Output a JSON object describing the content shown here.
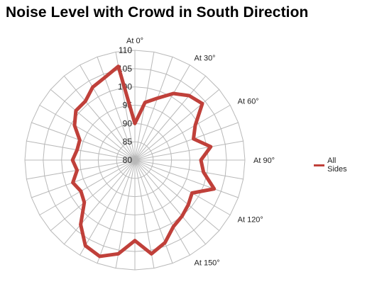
{
  "title": "Noise Level with Crowd in South Direction",
  "chart_data": {
    "type": "radar",
    "title": "Noise Level with Crowd in South Direction",
    "rlim": [
      80,
      110
    ],
    "r_ticks": [
      "80",
      "85",
      "90",
      "95",
      "100",
      "105",
      "110"
    ],
    "direction_labels": [
      {
        "label": "At 0°",
        "angle": 0
      },
      {
        "label": "At 30°",
        "angle": 30
      },
      {
        "label": "At 60°",
        "angle": 60
      },
      {
        "label": "At 90°",
        "angle": 90
      },
      {
        "label": "At 120°",
        "angle": 120
      },
      {
        "label": "At 150°",
        "angle": 150
      }
    ],
    "spokes": 36,
    "grid": true,
    "legend_position": "right",
    "series": [
      {
        "name": "All Sides",
        "color": "#c0403a",
        "values": [
          90,
          96,
          98,
          101,
          103,
          104,
          99,
          97,
          101,
          98,
          99,
          103,
          98,
          99,
          100,
          101,
          104,
          106,
          102,
          106,
          108,
          107,
          103,
          98,
          97,
          98,
          96,
          97,
          96,
          96,
          99,
          101,
          101,
          103,
          104,
          106
        ]
      }
    ],
    "legend": [
      {
        "label": "All Sides",
        "color": "#c0403a"
      }
    ]
  }
}
